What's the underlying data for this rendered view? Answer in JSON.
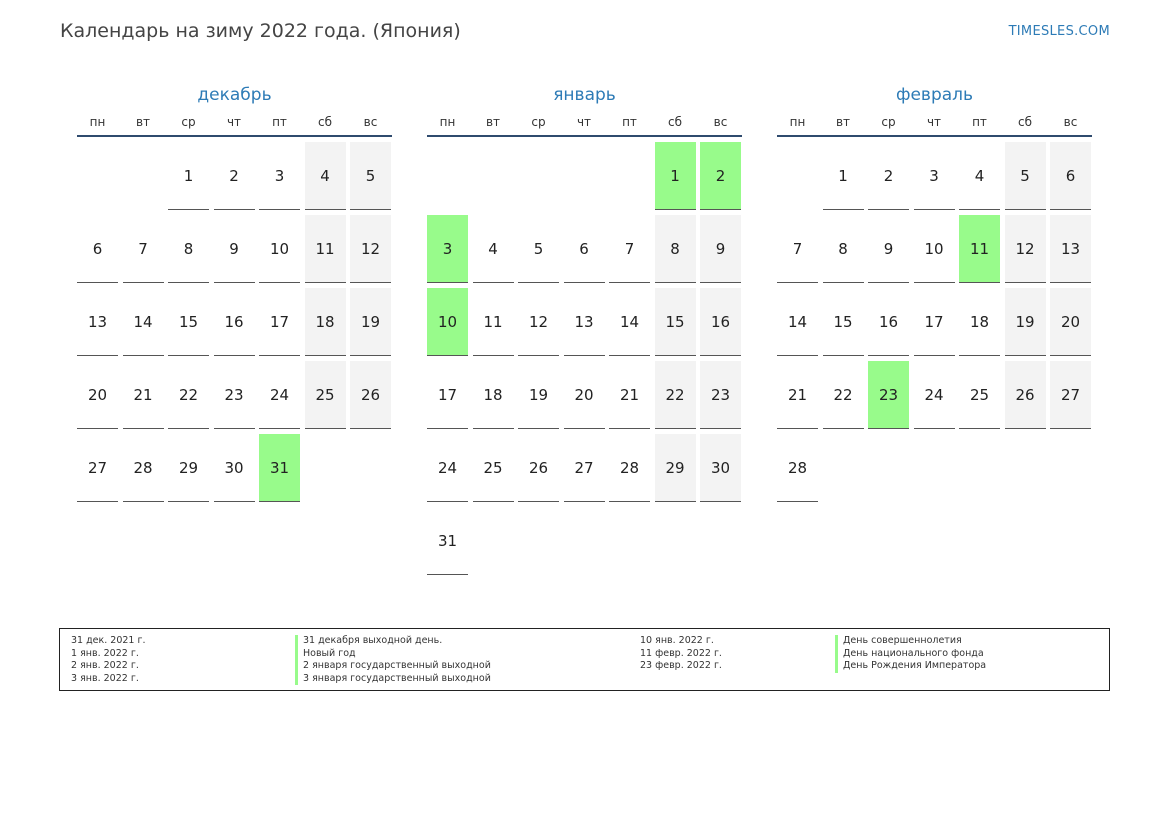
{
  "header": {
    "title": "Календарь на зиму 2022 года. (Япония)",
    "site": "TIMESLES.COM"
  },
  "colors": {
    "holiday": "#98fb8b",
    "weekend": "#f3f3f3",
    "accent": "#2d7bb6"
  },
  "weekdays": [
    "пн",
    "вт",
    "ср",
    "чт",
    "пт",
    "сб",
    "вс"
  ],
  "months": [
    {
      "name": "декабрь",
      "offset": 2,
      "days": 31,
      "holidays": [
        31
      ]
    },
    {
      "name": "январь",
      "offset": 5,
      "days": 31,
      "holidays": [
        1,
        2,
        3,
        10
      ]
    },
    {
      "name": "февраль",
      "offset": 1,
      "days": 28,
      "holidays": [
        11,
        23
      ]
    }
  ],
  "legend": {
    "left": [
      {
        "date": "31 дек. 2021 г.",
        "name": "31 декабря выходной день."
      },
      {
        "date": "1 янв. 2022 г.",
        "name": "Новый год"
      },
      {
        "date": "2 янв. 2022 г.",
        "name": "2 января государственный выходной"
      },
      {
        "date": "3 янв. 2022 г.",
        "name": "3 января государственный выходной"
      }
    ],
    "right": [
      {
        "date": "10 янв. 2022 г.",
        "name": "День совершеннолетия"
      },
      {
        "date": "11 февр. 2022 г.",
        "name": "День национального фонда"
      },
      {
        "date": "23 февр. 2022 г.",
        "name": "День Рождения Императора"
      }
    ]
  }
}
